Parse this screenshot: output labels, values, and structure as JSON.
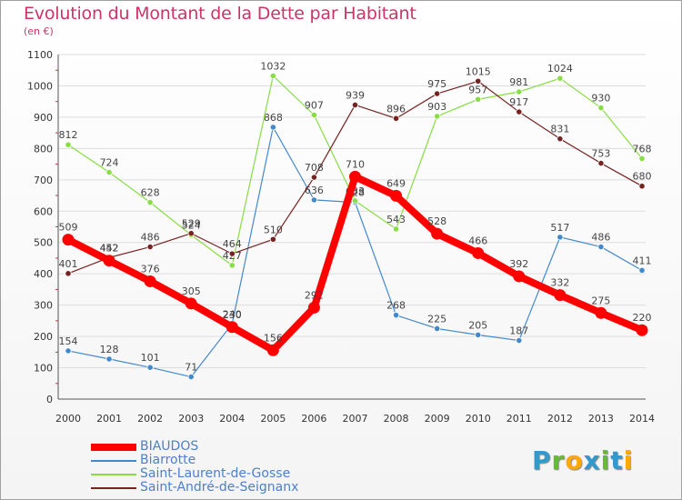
{
  "title": "Evolution du Montant de la Dette par Habitant",
  "subtitle": "(en €)",
  "logo": {
    "text": "Proxiti",
    "letters": [
      {
        "ch": "P",
        "color": "#3399cc"
      },
      {
        "ch": "r",
        "color": "#66bb33"
      },
      {
        "ch": "o",
        "color": "#ffaa00"
      },
      {
        "ch": "x",
        "color": "#3399cc"
      },
      {
        "ch": "i",
        "color": "#66bb33"
      },
      {
        "ch": "t",
        "color": "#3399cc"
      },
      {
        "ch": "i",
        "color": "#ffaa00"
      }
    ]
  },
  "chart_data": {
    "type": "line",
    "title": "Evolution du Montant de la Dette par Habitant",
    "subtitle": "(en €)",
    "xlabel": "",
    "ylabel": "",
    "ylim": [
      0,
      1100
    ],
    "y_ticks": [
      0,
      100,
      200,
      300,
      400,
      500,
      600,
      700,
      800,
      900,
      1000,
      1100
    ],
    "grid": "horizontal",
    "legend_position": "bottom-left",
    "x": [
      "2000",
      "2001",
      "2002",
      "2003",
      "2004",
      "2005",
      "2006",
      "2007",
      "2008",
      "2009",
      "2010",
      "2011",
      "2012",
      "2013",
      "2014"
    ],
    "series": [
      {
        "name": "BIAUDOS",
        "color": "#ff0000",
        "thick": true,
        "values": [
          509,
          442,
          376,
          305,
          230,
          156,
          292,
          710,
          649,
          528,
          466,
          392,
          332,
          275,
          220
        ]
      },
      {
        "name": "Biarrotte",
        "color": "#4488cc",
        "thick": false,
        "values": [
          154,
          128,
          101,
          71,
          240,
          868,
          636,
          628,
          268,
          225,
          205,
          187,
          517,
          486,
          411
        ]
      },
      {
        "name": "Saint-Laurent-de-Gosse",
        "color": "#88dd44",
        "thick": false,
        "values": [
          812,
          724,
          628,
          524,
          427,
          1032,
          907,
          633,
          543,
          903,
          957,
          981,
          1024,
          930,
          768
        ]
      },
      {
        "name": "Saint-André-de-Seignanx",
        "color": "#772222",
        "thick": false,
        "values": [
          401,
          452,
          486,
          529,
          464,
          510,
          708,
          939,
          896,
          975,
          1015,
          917,
          831,
          753,
          680
        ]
      }
    ]
  }
}
